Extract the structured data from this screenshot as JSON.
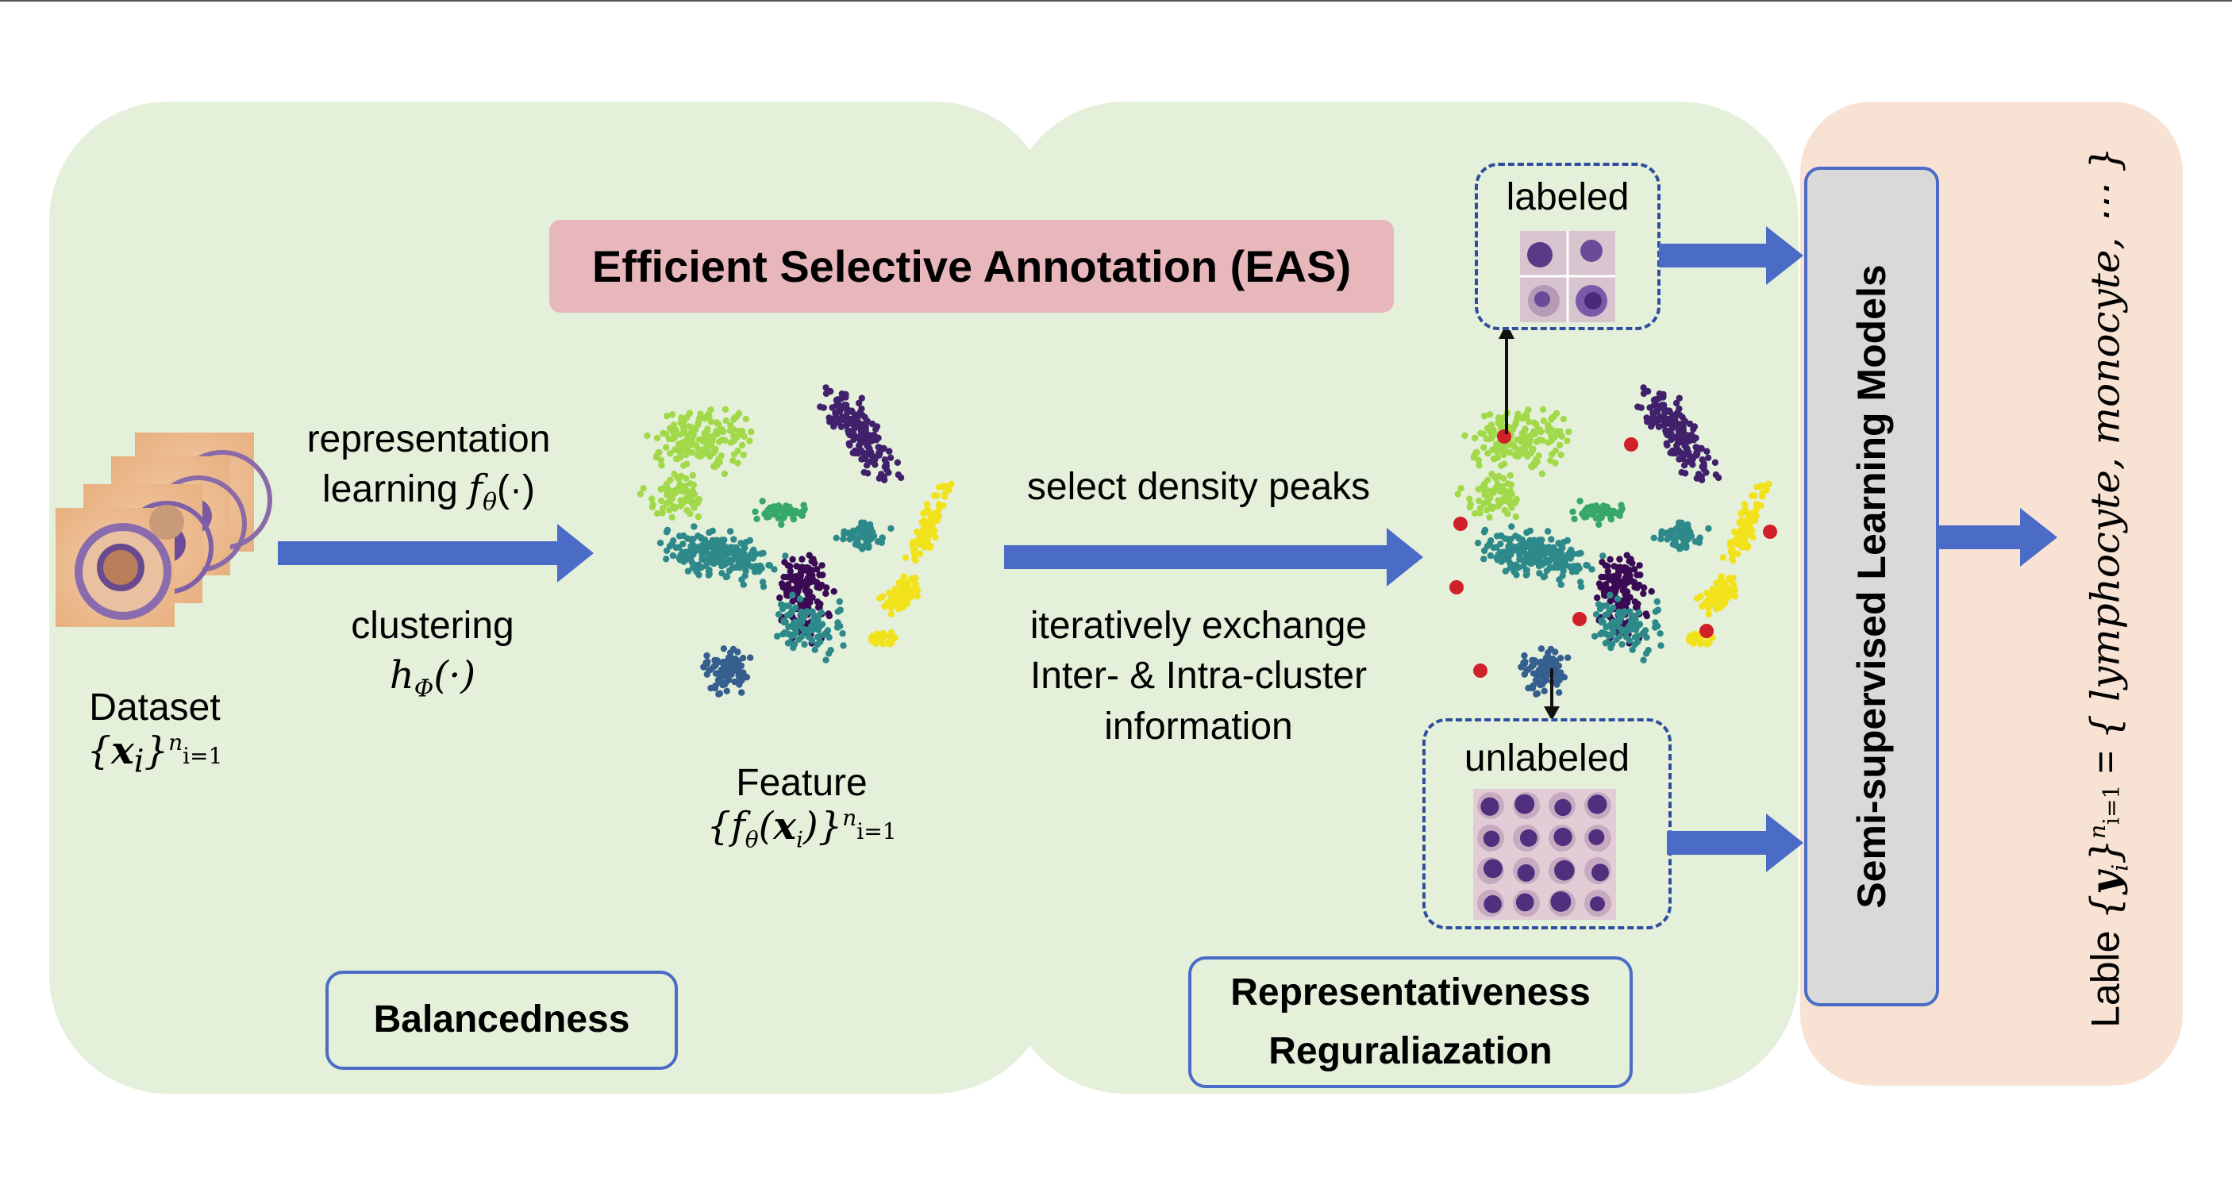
{
  "eas_title": "Efficient Selective Annotation (EAS)",
  "dataset": {
    "label": "Dataset",
    "formula": "{x_i}^n_i=1"
  },
  "representation": {
    "line1": "representation",
    "line2": "learning f_θ(·)"
  },
  "clustering": {
    "line1": "clustering",
    "formula": "h_Φ(·)"
  },
  "feature": {
    "label": "Feature",
    "formula": "{f_θ(x_i)}^n_i=1"
  },
  "select": {
    "label": "select density peaks"
  },
  "exchange": {
    "line1": "iteratively exchange",
    "line2": "Inter- & Intra-cluster",
    "line3": "information"
  },
  "labeled_label": "labeled",
  "unlabeled_label": "unlabeled",
  "balancedness": "Balancedness",
  "representativeness": {
    "line1": "Representativeness",
    "line2": "Reguraliazation"
  },
  "ssl_label": "Semi-supervised Learning Models",
  "output_label": "Lable {y_i}^n_i=1 = { lymphocyte, monocyte, ⋯ }",
  "colors": {
    "panel": "#e4f0da",
    "output_panel": "#f8e2d3",
    "eas": "#e8b7bc",
    "arrow": "#4a6bc6",
    "border": "#4a6bc6",
    "peak": "#d0202a"
  },
  "clusters": [
    {
      "name": "purple",
      "color": "#41216b"
    },
    {
      "name": "light-green",
      "color": "#a2d94a"
    },
    {
      "name": "teal",
      "color": "#2e8a8a"
    },
    {
      "name": "green",
      "color": "#38a86a"
    },
    {
      "name": "yellow",
      "color": "#f2e21c"
    },
    {
      "name": "blue",
      "color": "#355f8e"
    },
    {
      "name": "dark-violet",
      "color": "#3a0a55"
    }
  ]
}
